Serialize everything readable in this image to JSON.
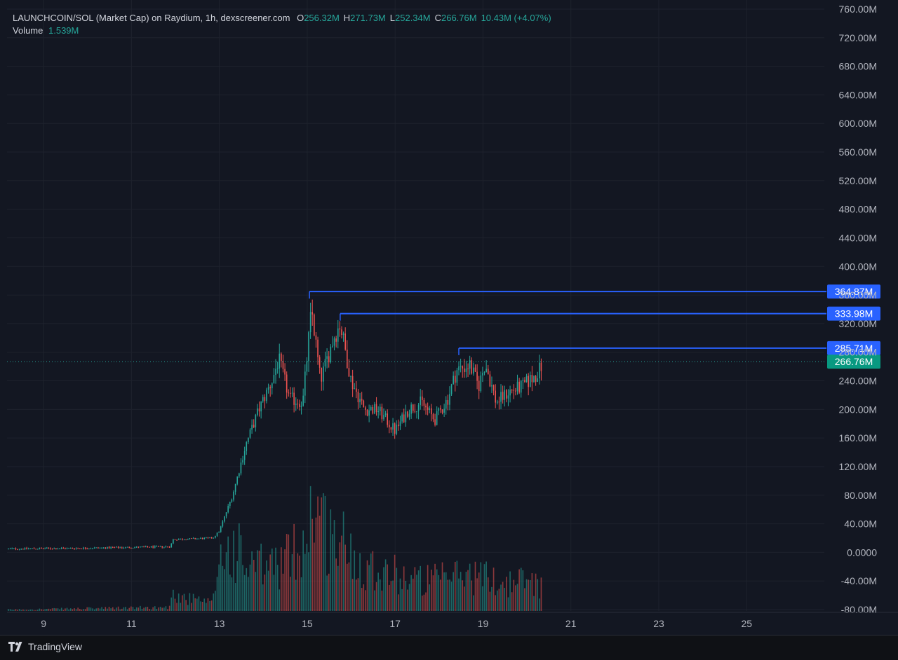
{
  "header": {
    "title": "LAUNCHCOIN/SOL (Market Cap) on Raydium, 1h, dexscreener.com",
    "o_label": "O",
    "o_value": "256.32M",
    "h_label": "H",
    "h_value": "271.73M",
    "l_label": "L",
    "l_value": "252.34M",
    "c_label": "C",
    "c_value": "266.76M",
    "change": "10.43M (+4.07%)",
    "volume_label": "Volume",
    "volume_value": "1.539M"
  },
  "footer": {
    "brand": "TradingView"
  },
  "colors": {
    "up": "#26a69a",
    "down": "#ef5350",
    "level": "#2962ff",
    "last_price": "#089981",
    "grid": "#1e222d",
    "background": "#131722"
  },
  "chart_data": {
    "type": "candlestick",
    "interval": "1h",
    "y_unit": "market cap (USD)",
    "ylim": [
      -80,
      760
    ],
    "y_ticks": [
      "760.00M",
      "720.00M",
      "680.00M",
      "640.00M",
      "600.00M",
      "560.00M",
      "520.00M",
      "480.00M",
      "440.00M",
      "400.00M",
      "360.00M",
      "320.00M",
      "280.00M",
      "240.00M",
      "200.00M",
      "160.00M",
      "120.00M",
      "80.00M",
      "40.00M",
      "0.0000",
      "-40.00M",
      "-80.00M"
    ],
    "y_tick_values": [
      760,
      720,
      680,
      640,
      600,
      560,
      520,
      480,
      440,
      400,
      360,
      320,
      280,
      240,
      200,
      160,
      120,
      80,
      40,
      0,
      -40,
      -80
    ],
    "x_ticks": [
      "9",
      "11",
      "13",
      "15",
      "17",
      "19",
      "21",
      "23",
      "25"
    ],
    "x_tick_days": [
      9,
      11,
      13,
      15,
      17,
      19,
      21,
      23,
      25
    ],
    "xlim_days": [
      8.2,
      26.8
    ],
    "grid": true,
    "horizontal_levels": [
      {
        "label": "364.87M",
        "value": 364.87,
        "start_day": 15.05
      },
      {
        "label": "333.98M",
        "value": 333.98,
        "start_day": 15.75
      },
      {
        "label": "285.71M",
        "value": 285.71,
        "start_day": 18.45
      }
    ],
    "last_price": {
      "label": "266.76M",
      "value": 266.76
    },
    "price_path": [
      [
        8.2,
        5
      ],
      [
        10.0,
        6
      ],
      [
        11.9,
        8
      ],
      [
        11.92,
        18
      ],
      [
        12.85,
        20
      ],
      [
        13.0,
        30
      ],
      [
        13.3,
        80
      ],
      [
        13.6,
        150
      ],
      [
        13.9,
        200
      ],
      [
        14.2,
        240
      ],
      [
        14.35,
        270
      ],
      [
        14.6,
        215
      ],
      [
        14.9,
        210
      ],
      [
        15.05,
        310
      ],
      [
        15.1,
        340
      ],
      [
        15.3,
        240
      ],
      [
        15.6,
        300
      ],
      [
        15.75,
        320
      ],
      [
        16.0,
        240
      ],
      [
        16.3,
        200
      ],
      [
        16.6,
        200
      ],
      [
        17.0,
        170
      ],
      [
        17.3,
        200
      ],
      [
        17.6,
        210
      ],
      [
        17.9,
        185
      ],
      [
        18.2,
        215
      ],
      [
        18.4,
        255
      ],
      [
        18.7,
        262
      ],
      [
        18.9,
        232
      ],
      [
        19.05,
        265
      ],
      [
        19.3,
        210
      ],
      [
        19.6,
        225
      ],
      [
        19.9,
        232
      ],
      [
        20.2,
        248
      ],
      [
        20.35,
        262
      ]
    ],
    "volume_path": [
      [
        8.2,
        0.01
      ],
      [
        11.9,
        0.03
      ],
      [
        11.92,
        0.45
      ],
      [
        12.0,
        0.12
      ],
      [
        12.85,
        0.06
      ],
      [
        13.0,
        0.45
      ],
      [
        13.4,
        0.5
      ],
      [
        13.6,
        0.35
      ],
      [
        14.0,
        0.35
      ],
      [
        14.5,
        0.4
      ],
      [
        15.0,
        0.6
      ],
      [
        15.15,
        0.95
      ],
      [
        15.4,
        0.65
      ],
      [
        15.8,
        0.55
      ],
      [
        16.2,
        0.4
      ],
      [
        16.6,
        0.35
      ],
      [
        17.0,
        0.3
      ],
      [
        17.5,
        0.25
      ],
      [
        18.0,
        0.25
      ],
      [
        18.5,
        0.3
      ],
      [
        19.0,
        0.28
      ],
      [
        19.5,
        0.22
      ],
      [
        20.0,
        0.25
      ],
      [
        20.35,
        0.22
      ]
    ]
  }
}
